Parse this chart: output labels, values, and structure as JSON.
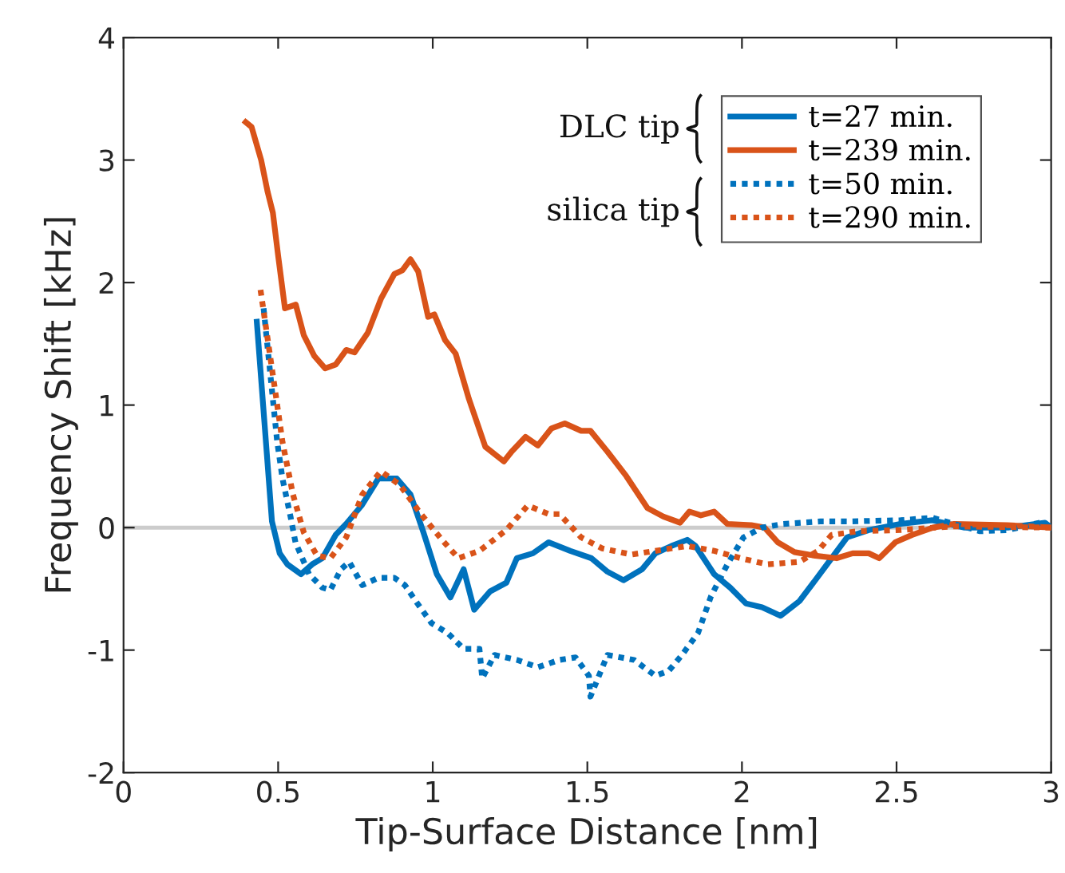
{
  "chart_data": {
    "type": "line",
    "xlabel": "Tip-Surface Distance [nm]",
    "ylabel": "Frequency Shift [kHz]",
    "xlim": [
      0,
      3
    ],
    "xticks": [
      0,
      0.5,
      1,
      1.5,
      2,
      2.5,
      3
    ],
    "ylim": [
      -2,
      4
    ],
    "yticks": [
      -2,
      -1,
      0,
      1,
      2,
      3,
      4
    ],
    "grid": false,
    "legend": "top right",
    "annotations": [
      "DLC tip",
      "silica tip"
    ],
    "ref_lines": [
      {
        "axis": "y",
        "value": 0,
        "color": "#cccccc",
        "line_style": "solid"
      }
    ],
    "series": [
      {
        "name": "t=27 min.",
        "color": "#0072bd",
        "line_style": "solid",
        "x": [
          0.431,
          0.48,
          0.505,
          0.53,
          0.574,
          0.61,
          0.643,
          0.686,
          0.72,
          0.77,
          0.824,
          0.884,
          0.928,
          0.97,
          1.013,
          1.057,
          1.1,
          1.134,
          1.186,
          1.238,
          1.272,
          1.324,
          1.375,
          1.445,
          1.513,
          1.565,
          1.617,
          1.677,
          1.72,
          1.772,
          1.823,
          1.85,
          1.91,
          1.962,
          2.013,
          2.065,
          2.125,
          2.186,
          2.237,
          2.29,
          2.34,
          2.41,
          2.513,
          2.616,
          2.72,
          2.86,
          2.98,
          3.0
        ],
        "values": [
          1.68,
          0.05,
          -0.21,
          -0.3,
          -0.38,
          -0.3,
          -0.25,
          -0.06,
          0.03,
          0.18,
          0.4,
          0.4,
          0.27,
          -0.04,
          -0.38,
          -0.57,
          -0.34,
          -0.67,
          -0.52,
          -0.45,
          -0.25,
          -0.21,
          -0.12,
          -0.19,
          -0.25,
          -0.36,
          -0.43,
          -0.34,
          -0.21,
          -0.15,
          -0.1,
          -0.15,
          -0.38,
          -0.49,
          -0.62,
          -0.65,
          -0.72,
          -0.6,
          -0.43,
          -0.25,
          -0.08,
          -0.02,
          0.03,
          0.06,
          0.0,
          0.0,
          0.04,
          0.0
        ]
      },
      {
        "name": "t=239 min.",
        "color": "#d95319",
        "line_style": "solid",
        "x": [
          0.395,
          0.414,
          0.445,
          0.466,
          0.483,
          0.5,
          0.522,
          0.557,
          0.583,
          0.617,
          0.652,
          0.686,
          0.72,
          0.747,
          0.79,
          0.833,
          0.876,
          0.902,
          0.928,
          0.953,
          0.985,
          1.005,
          1.04,
          1.074,
          1.117,
          1.17,
          1.23,
          1.255,
          1.3,
          1.34,
          1.384,
          1.427,
          1.48,
          1.51,
          1.565,
          1.626,
          1.694,
          1.746,
          1.8,
          1.83,
          1.867,
          1.91,
          1.953,
          2.03,
          2.073,
          2.116,
          2.17,
          2.237,
          2.306,
          2.358,
          2.41,
          2.444,
          2.496,
          2.55,
          2.618,
          2.686,
          2.858,
          3.0
        ],
        "values": [
          3.31,
          3.27,
          3.0,
          2.74,
          2.57,
          2.22,
          1.79,
          1.82,
          1.57,
          1.4,
          1.3,
          1.33,
          1.45,
          1.43,
          1.59,
          1.87,
          2.07,
          2.1,
          2.19,
          2.09,
          1.72,
          1.74,
          1.53,
          1.42,
          1.05,
          0.66,
          0.54,
          0.62,
          0.74,
          0.67,
          0.81,
          0.85,
          0.79,
          0.79,
          0.62,
          0.42,
          0.16,
          0.09,
          0.04,
          0.13,
          0.1,
          0.13,
          0.03,
          0.02,
          0.0,
          -0.12,
          -0.2,
          -0.23,
          -0.25,
          -0.21,
          -0.21,
          -0.25,
          -0.12,
          -0.06,
          0.0,
          0.03,
          0.02,
          0.0
        ]
      },
      {
        "name": "t=50 min.",
        "color": "#0072bd",
        "line_style": "dotted",
        "x": [
          0.453,
          0.497,
          0.514,
          0.54,
          0.556,
          0.6,
          0.643,
          0.669,
          0.703,
          0.73,
          0.772,
          0.824,
          0.876,
          0.91,
          0.945,
          0.996,
          1.048,
          1.1,
          1.151,
          1.16,
          1.2,
          1.272,
          1.34,
          1.41,
          1.462,
          1.505,
          1.51,
          1.565,
          1.651,
          1.72,
          1.763,
          1.806,
          1.858,
          1.9,
          1.953,
          2.005,
          2.065,
          2.134,
          2.254,
          2.34,
          2.513,
          2.616,
          2.77,
          2.86,
          2.98
        ],
        "values": [
          1.79,
          0.7,
          0.4,
          0.09,
          -0.12,
          -0.38,
          -0.49,
          -0.51,
          -0.34,
          -0.28,
          -0.47,
          -0.41,
          -0.41,
          -0.47,
          -0.6,
          -0.78,
          -0.86,
          -0.99,
          -0.99,
          -1.23,
          -1.04,
          -1.08,
          -1.14,
          -1.08,
          -1.06,
          -1.21,
          -1.38,
          -1.04,
          -1.08,
          -1.21,
          -1.17,
          -1.04,
          -0.86,
          -0.56,
          -0.3,
          -0.08,
          0.0,
          0.03,
          0.05,
          0.05,
          0.06,
          0.08,
          -0.03,
          -0.02,
          0.05
        ]
      },
      {
        "name": "t=290 min.",
        "color": "#d95319",
        "line_style": "dotted",
        "x": [
          0.443,
          0.462,
          0.497,
          0.514,
          0.548,
          0.583,
          0.626,
          0.669,
          0.72,
          0.772,
          0.832,
          0.893,
          0.962,
          1.03,
          1.083,
          1.151,
          1.238,
          1.307,
          1.375,
          1.41,
          1.48,
          1.548,
          1.643,
          1.72,
          1.823,
          1.91,
          1.996,
          2.082,
          2.186,
          2.246,
          2.29,
          2.375,
          2.513,
          2.686,
          3.0
        ],
        "values": [
          1.94,
          1.61,
          1.0,
          0.7,
          0.27,
          -0.04,
          -0.23,
          -0.25,
          -0.08,
          0.27,
          0.46,
          0.35,
          0.11,
          -0.1,
          -0.25,
          -0.19,
          -0.02,
          0.18,
          0.11,
          0.11,
          -0.08,
          -0.17,
          -0.22,
          -0.19,
          -0.15,
          -0.19,
          -0.25,
          -0.3,
          -0.28,
          -0.19,
          -0.06,
          -0.03,
          -0.02,
          0.01,
          0.0
        ]
      }
    ]
  }
}
